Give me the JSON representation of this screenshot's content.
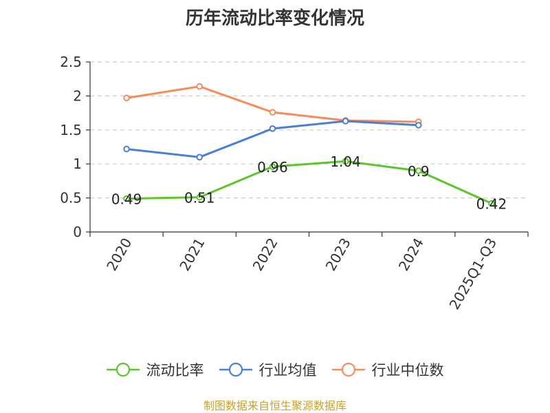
{
  "title": "历年流动比率变化情况",
  "source": "制图数据来自恒生聚源数据库",
  "chart_data": {
    "type": "line",
    "title": "历年流动比率变化情况",
    "categories": [
      "2020",
      "2021",
      "2022",
      "2023",
      "2024",
      "2025Q1-Q3"
    ],
    "ylim": [
      0,
      2.5
    ],
    "yticks": [
      "0",
      "0.5",
      "1",
      "1.5",
      "2",
      "2.5"
    ],
    "ytick_values": [
      0,
      0.5,
      1,
      1.5,
      2,
      2.5
    ],
    "grid": true,
    "legend_position": "bottom",
    "series": [
      {
        "name": "流动比率",
        "color": "#5bc52a",
        "values": [
          0.49,
          0.51,
          0.96,
          1.04,
          0.9,
          0.42
        ],
        "labels": [
          "0.49",
          "0.51",
          "0.96",
          "1.04",
          "0.9",
          "0.42"
        ]
      },
      {
        "name": "行业均值",
        "color": "#4a7fd8",
        "values": [
          1.22,
          1.1,
          1.52,
          1.63,
          1.57,
          null
        ]
      },
      {
        "name": "行业中位数",
        "color": "#f78c5a",
        "values": [
          1.97,
          2.14,
          1.76,
          1.64,
          1.62,
          null
        ]
      }
    ]
  }
}
